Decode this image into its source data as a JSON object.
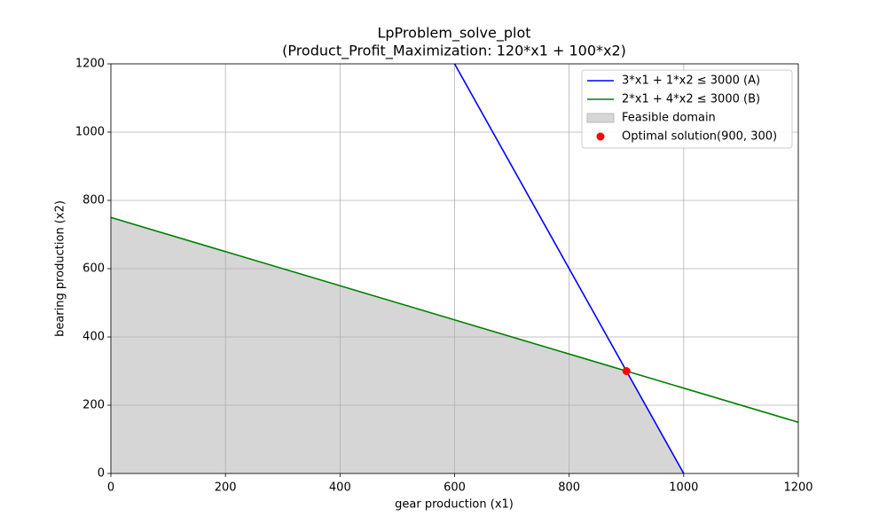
{
  "chart_data": {
    "type": "line",
    "title": "LpProblem_solve_plot",
    "subtitle": "(Product_Profit_Maximization: 120*x1 + 100*x2)",
    "x_label": "gear production (x1)",
    "y_label": "bearing production (x2)",
    "xlim": [
      0,
      1200
    ],
    "ylim": [
      0,
      1200
    ],
    "xticks": [
      0,
      200,
      400,
      600,
      800,
      1000,
      1200
    ],
    "yticks": [
      0,
      200,
      400,
      600,
      800,
      1000,
      1200
    ],
    "grid": true,
    "legend": "upper right",
    "series": [
      {
        "name": "3*x1 + 1*x2 ≤ 3000 (A)",
        "type": "line",
        "color": "#0000ff",
        "x": [
          600,
          1000
        ],
        "values": [
          1200,
          0
        ]
      },
      {
        "name": "2*x1 + 4*x2 ≤ 3000 (B)",
        "type": "line",
        "color": "#008000",
        "x": [
          0,
          1200
        ],
        "values": [
          750,
          150
        ]
      },
      {
        "name": "Feasible domain",
        "type": "area",
        "color": "#d6d6d6",
        "x": [
          0,
          900,
          1000
        ],
        "values": [
          750,
          300,
          0
        ]
      },
      {
        "name": "Optimal solution(900, 300)",
        "type": "scatter",
        "color": "#ff0000",
        "x": [
          900
        ],
        "values": [
          300
        ]
      }
    ]
  }
}
